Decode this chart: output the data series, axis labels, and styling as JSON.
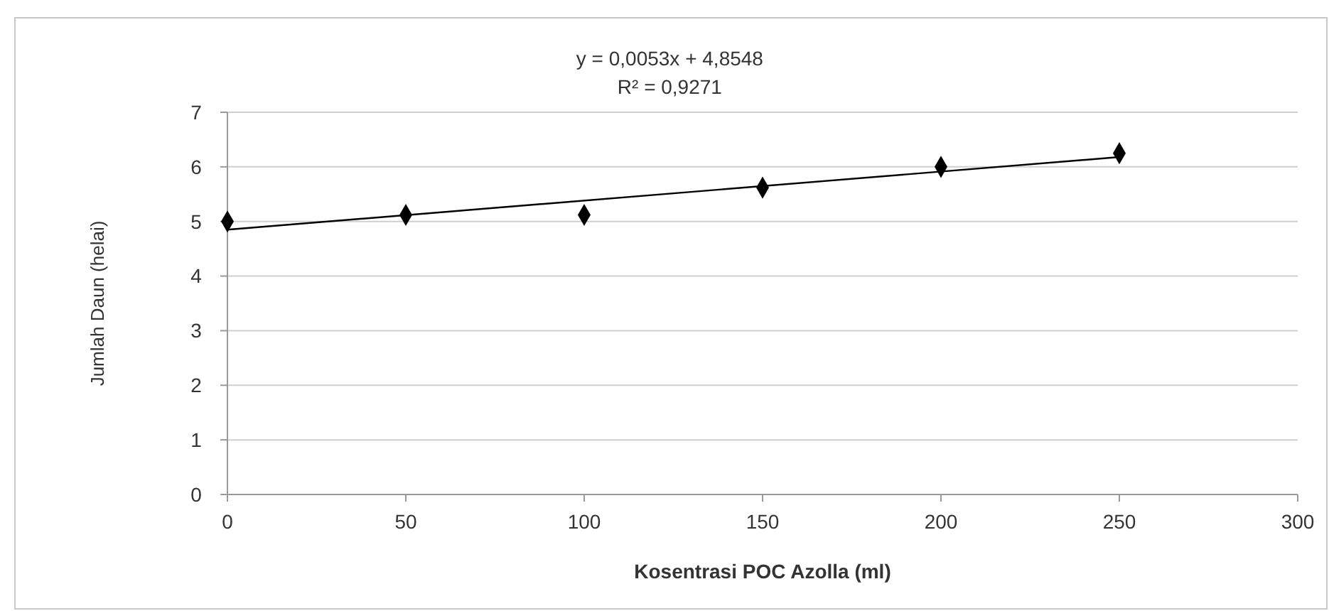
{
  "chart_data": {
    "type": "scatter",
    "xlabel": "Kosentrasi POC Azolla (ml)",
    "ylabel": "Jumlah Daun (helai)",
    "annotations": [
      "y = 0,0053x + 4,8548",
      "R² = 0,9271"
    ],
    "xlim": [
      0,
      300
    ],
    "xticks": [
      0,
      50,
      100,
      150,
      200,
      250,
      300
    ],
    "ylim": [
      0,
      7
    ],
    "yticks": [
      0,
      1,
      2,
      3,
      4,
      5,
      6,
      7
    ],
    "grid": "y",
    "series": [
      {
        "color": "#000000",
        "marker": "diamond",
        "x": [
          0,
          50,
          100,
          150,
          200,
          250
        ],
        "values": [
          5,
          5.12,
          5.12,
          5.62,
          6,
          6.25
        ]
      },
      {
        "type": "line",
        "color": "#000000",
        "marker": "none",
        "line_style": "solid",
        "x": [
          0,
          250
        ],
        "values": [
          4.85,
          6.18
        ]
      }
    ]
  }
}
